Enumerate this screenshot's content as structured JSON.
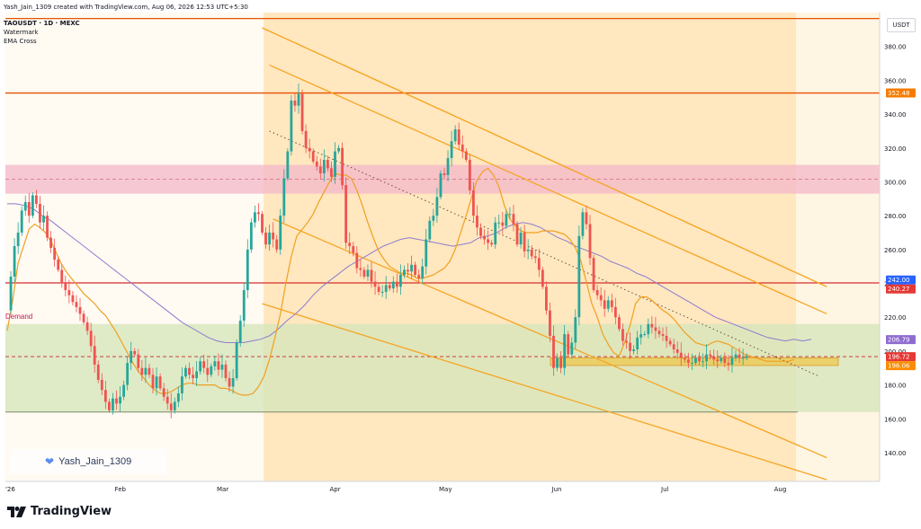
{
  "header": {
    "creator": "Yash_Jain_1309 created with TradingView.com, Aug 06, 2026 12:53 UTC+5:30",
    "symbol": "TAOUSDT · 1D · MEXC",
    "indicator1": "Watermark",
    "indicator2": "EMA Cross"
  },
  "currency": "USDT",
  "zone_label": "Demand",
  "watermark_text": "Yash_Jain_1309",
  "brand": "TradingView",
  "chart_data": {
    "type": "candlestick",
    "title": "TAOUSDT · 1D · MEXC",
    "x_ticks": [
      "'26",
      "Feb",
      "Mar",
      "Apr",
      "May",
      "Jun",
      "Jul",
      "Aug"
    ],
    "y_ticks": [
      "380.00",
      "360.00",
      "340.00",
      "320.00",
      "300.00",
      "280.00",
      "260.00",
      "240.00",
      "220.00",
      "200.00",
      "180.00",
      "160.00",
      "140.00"
    ],
    "ylim": [
      123,
      400
    ],
    "price_labels": [
      {
        "value": 352.48,
        "text": "352.48",
        "color": "#f57c00"
      },
      {
        "value": 242.0,
        "text": "242.00",
        "color": "#2962ff"
      },
      {
        "value": 240.27,
        "text": "240.27",
        "color": "#e53935"
      },
      {
        "value": 206.79,
        "text": "206.79",
        "color": "#8e6ccf"
      },
      {
        "value": 196.72,
        "text": "196.72",
        "color": "#e53935"
      },
      {
        "value": 196.06,
        "text": "196.06",
        "color": "#fb8c00"
      }
    ],
    "horizontal_lines": [
      {
        "value": 396.5,
        "color": "#e65100"
      },
      {
        "value": 352.48,
        "color": "#e65100"
      },
      {
        "value": 240.27,
        "color": "#d32f2f"
      },
      {
        "value": 196.72,
        "color": "#c62828",
        "dashed": true
      }
    ],
    "supply_zone": {
      "low": 293,
      "high": 310
    },
    "demand_zone": {
      "low": 164,
      "high": 216
    },
    "daily_path": [
      224,
      244,
      262,
      270,
      283,
      288,
      280,
      292,
      287,
      276,
      280,
      267,
      261,
      254,
      248,
      240,
      236,
      233,
      229,
      226,
      222,
      217,
      212,
      203,
      192,
      183,
      177,
      170,
      165,
      172,
      169,
      173,
      180,
      193,
      200,
      198,
      190,
      186,
      190,
      186,
      178,
      185,
      178,
      173,
      169,
      165,
      170,
      175,
      185,
      190,
      186,
      184,
      188,
      194,
      190,
      186,
      191,
      194,
      189,
      192,
      184,
      179,
      184,
      205,
      218,
      236,
      260,
      276,
      282,
      281,
      270,
      263,
      270,
      266,
      260,
      280,
      302,
      318,
      348,
      345,
      352,
      330,
      320,
      318,
      312,
      309,
      305,
      313,
      308,
      303,
      318,
      320,
      298,
      264,
      262,
      258,
      249,
      248,
      244,
      248,
      241,
      238,
      235,
      235,
      239,
      237,
      241,
      238,
      245,
      248,
      247,
      251,
      245,
      243,
      250,
      266,
      277,
      280,
      291,
      305,
      304,
      314,
      324,
      331,
      322,
      318,
      313,
      295,
      280,
      273,
      268,
      266,
      264,
      263,
      276,
      276,
      274,
      281,
      281,
      275,
      263,
      270,
      259,
      260,
      256,
      255,
      248,
      238,
      224,
      209,
      190,
      196,
      190,
      210,
      198,
      205,
      220,
      268,
      282,
      275,
      255,
      236,
      233,
      230,
      225,
      230,
      226,
      220,
      213,
      206,
      205,
      200,
      201,
      208,
      210,
      210,
      216,
      214,
      212,
      210,
      209,
      206,
      204,
      201,
      199,
      196,
      195,
      193,
      193,
      196,
      194,
      194,
      198,
      197,
      195,
      194,
      196,
      193,
      192,
      196,
      198,
      196,
      196,
      197
    ],
    "ema_fast": [
      212,
      230,
      252,
      262,
      272,
      275,
      273,
      270,
      265,
      258,
      251,
      246,
      242,
      238,
      234,
      231,
      228,
      224,
      221,
      216,
      211,
      205,
      199,
      193,
      188,
      184,
      180,
      177,
      175,
      175,
      176,
      178,
      180,
      181,
      181,
      180,
      180,
      180,
      180,
      178,
      178,
      177,
      175,
      174,
      174,
      175,
      179,
      185,
      195,
      208,
      222,
      240,
      256,
      268,
      272,
      276,
      281,
      288,
      294,
      300,
      305,
      304,
      304,
      302,
      295,
      286,
      276,
      267,
      259,
      254,
      250,
      248,
      246,
      246,
      245,
      243,
      243,
      244,
      245,
      247,
      249,
      253,
      260,
      270,
      280,
      291,
      301,
      306,
      308,
      304,
      297,
      286,
      278,
      274,
      271,
      270,
      270,
      270,
      271,
      271,
      271,
      270,
      269,
      266,
      261,
      253,
      241,
      228,
      220,
      210,
      204,
      199,
      197,
      205,
      215,
      228,
      232,
      232,
      230,
      227,
      224,
      222,
      219,
      215,
      211,
      208,
      205,
      204,
      203,
      205,
      206,
      205,
      204,
      202,
      200,
      198,
      197,
      196,
      195,
      194,
      194,
      194,
      194,
      194,
      195
    ],
    "ema_slow": [
      287,
      287,
      286,
      284,
      280,
      277,
      273,
      269,
      265,
      261,
      257,
      253,
      249,
      245,
      241,
      237,
      233,
      229,
      225,
      221,
      217,
      214,
      211,
      208,
      206,
      205,
      205,
      205,
      206,
      207,
      209,
      213,
      218,
      222,
      227,
      233,
      238,
      242,
      246,
      250,
      253,
      256,
      259,
      262,
      264,
      266,
      267,
      266,
      265,
      264,
      263,
      262,
      263,
      264,
      267,
      268,
      270,
      273,
      275,
      276,
      275,
      273,
      270,
      267,
      265,
      262,
      260,
      258,
      256,
      253,
      251,
      249,
      246,
      244,
      241,
      238,
      235,
      232,
      229,
      226,
      223,
      220,
      218,
      216,
      214,
      212,
      210,
      208,
      207,
      206,
      207,
      206,
      207
    ]
  }
}
